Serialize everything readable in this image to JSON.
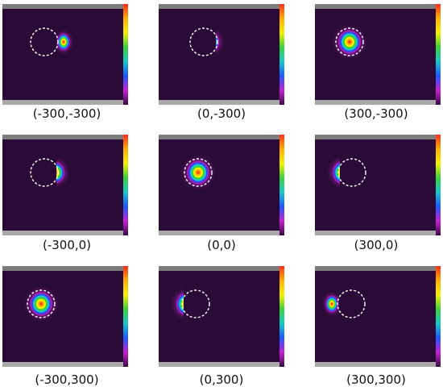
{
  "colors": {
    "background": "#2a0a36",
    "top_bar": "#7c7c7c",
    "bottom_bar": "#a9a9a9",
    "dashed_circle": "#ffffff"
  },
  "colorbar_stops": [
    "#ff2a1a",
    "#ffb000",
    "#f6f000",
    "#3cd23c",
    "#17c8c8",
    "#1f59ff",
    "#c81fd2",
    "#3a0a45"
  ],
  "beam_ring_colors": [
    "#5a0f6a",
    "#a020a8",
    "#2a4cff",
    "#1fc6c6",
    "#33d23a",
    "#f3f000",
    "#ffb000",
    "#ff4a10"
  ],
  "panels": [
    {
      "label": "(-300,-300)",
      "overlap": "edge"
    },
    {
      "label": "(0,-300)",
      "overlap": "partial"
    },
    {
      "label": "(300,-300)",
      "overlap": "full"
    },
    {
      "label": "(-300,0)",
      "overlap": "partial"
    },
    {
      "label": "(0,0)",
      "overlap": "full"
    },
    {
      "label": "(300,0)",
      "overlap": "partial"
    },
    {
      "label": "(-300,300)",
      "overlap": "full"
    },
    {
      "label": "(0,300)",
      "overlap": "partial"
    },
    {
      "label": "(300,300)",
      "overlap": "edge"
    }
  ]
}
